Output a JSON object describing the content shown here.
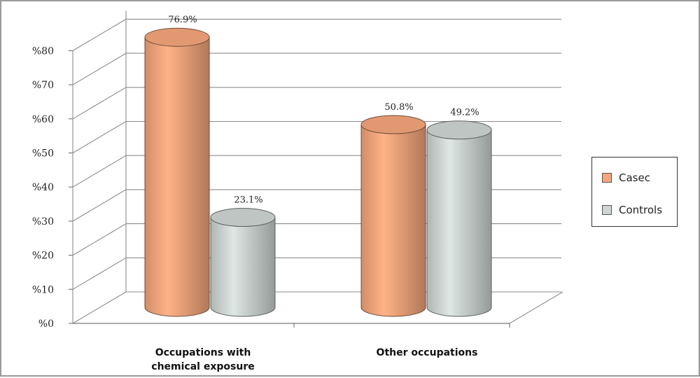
{
  "chart_data": {
    "type": "bar",
    "categories": [
      "Occupations with chemical exposure",
      "Other occupations"
    ],
    "category_lines": [
      [
        "Occupations with",
        "chemical exposure"
      ],
      [
        "Other occupations"
      ]
    ],
    "series": [
      {
        "name": "Casec",
        "values": [
          76.9,
          50.8
        ],
        "labels": [
          "76.9%",
          "50.8%"
        ],
        "color": "#f6a67c"
      },
      {
        "name": "Controls",
        "values": [
          23.1,
          49.2
        ],
        "labels": [
          "23.1%",
          "49.2%"
        ],
        "color": "#ced6d3"
      }
    ],
    "yticks": [
      "%0",
      "%10",
      "%20",
      "%30",
      "%40",
      "%50",
      "%60",
      "%70",
      "%80"
    ],
    "ylim": [
      0,
      80
    ],
    "legend_position": "right",
    "grid": true,
    "style": "3d-cylinder"
  }
}
